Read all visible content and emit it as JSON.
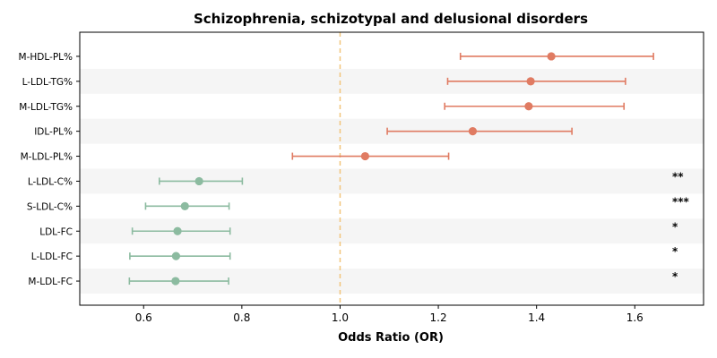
{
  "chart_data": {
    "type": "forest",
    "title": "Schizophrenia, schizotypal and delusional disorders",
    "xlabel": "Odds Ratio (OR)",
    "xlim": [
      0.47,
      1.74
    ],
    "xticks": [
      "0.6",
      "0.8",
      "1.0",
      "1.2",
      "1.4",
      "1.6"
    ],
    "reference_line": 1.0,
    "colors": {
      "increased": "#e07b62",
      "decreased": "#8cbba0",
      "reference": "#f2c57c",
      "band": "#f5f5f5"
    },
    "rows": [
      {
        "label": "M-HDL-PL%",
        "or": 1.43,
        "lo": 1.245,
        "hi": 1.638,
        "sig": "",
        "group": "increased"
      },
      {
        "label": "L-LDL-TG%",
        "or": 1.388,
        "lo": 1.219,
        "hi": 1.581,
        "sig": "",
        "group": "increased"
      },
      {
        "label": "M-LDL-TG%",
        "or": 1.384,
        "lo": 1.213,
        "hi": 1.578,
        "sig": "",
        "group": "increased"
      },
      {
        "label": "IDL-PL%",
        "or": 1.27,
        "lo": 1.096,
        "hi": 1.472,
        "sig": "",
        "group": "increased"
      },
      {
        "label": "M-LDL-PL%",
        "or": 1.051,
        "lo": 0.903,
        "hi": 1.221,
        "sig": "",
        "group": "increased"
      },
      {
        "label": "L-LDL-C%",
        "or": 0.713,
        "lo": 0.632,
        "hi": 0.801,
        "sig": "**",
        "group": "decreased"
      },
      {
        "label": "S-LDL-C%",
        "or": 0.684,
        "lo": 0.604,
        "hi": 0.774,
        "sig": "***",
        "group": "decreased"
      },
      {
        "label": "LDL-FC",
        "or": 0.669,
        "lo": 0.577,
        "hi": 0.776,
        "sig": "*",
        "group": "decreased"
      },
      {
        "label": "L-LDL-FC",
        "or": 0.666,
        "lo": 0.572,
        "hi": 0.776,
        "sig": "*",
        "group": "decreased"
      },
      {
        "label": "M-LDL-FC",
        "or": 0.665,
        "lo": 0.571,
        "hi": 0.773,
        "sig": "*",
        "group": "decreased"
      }
    ]
  }
}
